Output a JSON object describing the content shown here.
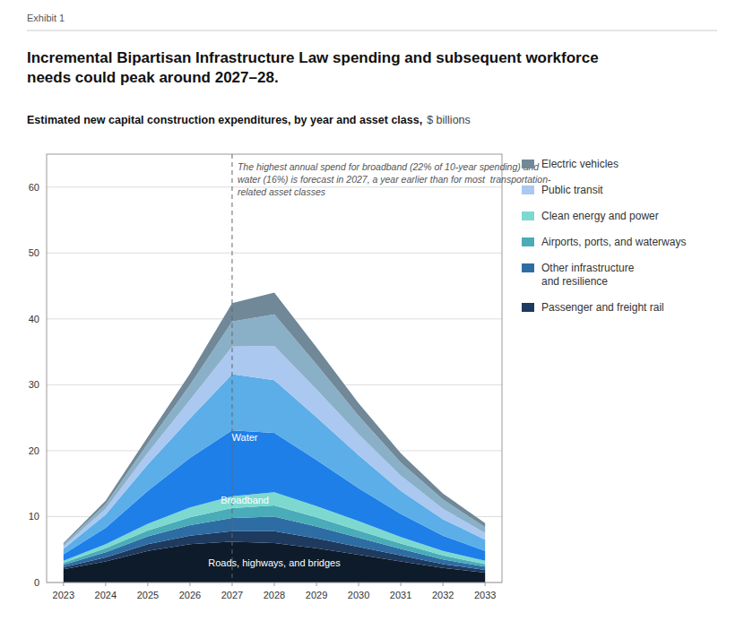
{
  "chart_data": {
    "type": "area",
    "stacked": true,
    "title": "Incremental Bipartisan Infrastructure Law spending and subsequent workforce\nneeds could peak around 2027–28.",
    "subtitle": "Estimated new capital construction expenditures, by year and asset class,",
    "y_label": "$ billions",
    "x": [
      2023,
      2024,
      2025,
      2026,
      2027,
      2028,
      2029,
      2030,
      2031,
      2032,
      2033
    ],
    "xlim": [
      2022.6,
      2033.4
    ],
    "xticks": [
      2023,
      2024,
      2025,
      2026,
      2027,
      2028,
      2029,
      2030,
      2031,
      2032,
      2033
    ],
    "ylim": [
      0,
      65
    ],
    "yticks": [
      0,
      10,
      20,
      30,
      40,
      50,
      60
    ],
    "grid": true,
    "legend": "right",
    "series": [
      {
        "color": "#0d1b2a",
        "values": [
          2.0,
          3.2,
          4.8,
          5.8,
          6.2,
          6.0,
          5.2,
          4.2,
          3.2,
          2.2,
          1.5
        ]
      },
      {
        "name": "Passenger and freight rail",
        "color": "#1e3a5f",
        "values": [
          0.3,
          0.6,
          1.0,
          1.3,
          1.6,
          1.8,
          1.5,
          1.2,
          0.9,
          0.6,
          0.4
        ]
      },
      {
        "name": "Other infrastructure\nand resilience",
        "color": "#2e6da4",
        "values": [
          0.4,
          0.8,
          1.2,
          1.6,
          2.0,
          2.2,
          1.8,
          1.4,
          1.0,
          0.7,
          0.5
        ]
      },
      {
        "name": "Airports, ports, and waterways",
        "color": "#4aacb8",
        "values": [
          0.3,
          0.6,
          0.9,
          1.2,
          1.5,
          1.7,
          1.4,
          1.1,
          0.8,
          0.6,
          0.4
        ]
      },
      {
        "name": "Clean energy and power",
        "color": "#7dd9d0",
        "values": [
          0.3,
          0.6,
          1.0,
          1.5,
          1.8,
          2.0,
          1.7,
          1.4,
          1.0,
          0.7,
          0.5
        ]
      },
      {
        "color": "#1e7fe8",
        "values": [
          1.0,
          2.5,
          5.0,
          7.5,
          10.0,
          9.0,
          7.0,
          5.0,
          3.5,
          2.3,
          1.5
        ]
      },
      {
        "color": "#5baee8",
        "values": [
          0.8,
          2.0,
          4.0,
          6.0,
          8.5,
          8.0,
          6.5,
          5.0,
          3.5,
          2.5,
          1.7
        ]
      },
      {
        "name": "Public transit",
        "color": "#aac8f0",
        "values": [
          0.4,
          0.9,
          1.8,
          2.8,
          4.2,
          5.2,
          4.2,
          3.2,
          2.3,
          1.6,
          1.0
        ]
      },
      {
        "color": "#8ab0c8",
        "values": [
          0.3,
          0.7,
          1.4,
          2.3,
          3.8,
          4.8,
          3.8,
          2.8,
          2.0,
          1.4,
          0.9
        ]
      },
      {
        "name": "Electric vehicles",
        "color": "#708898",
        "values": [
          0.2,
          0.5,
          1.0,
          1.7,
          2.8,
          3.3,
          2.6,
          1.9,
          1.4,
          0.9,
          0.6
        ]
      }
    ],
    "annotations": [
      {
        "text": "Exhibit 1"
      },
      {
        "text": "The highest annual spend for broadband (22% of 10-year spending) and\nwater (16%) is forecast in 2027, a year earlier than for most  transportation-\nrelated asset classes",
        "x": 2027,
        "line_style": "dashed"
      },
      {
        "text": "Roads, highways, and bridges",
        "x": 2028.0,
        "y": 3.0
      },
      {
        "text": "Broadband",
        "x": 2027.3,
        "y": 12.5
      },
      {
        "text": "Water",
        "x": 2027.3,
        "y": 22.0
      }
    ]
  }
}
